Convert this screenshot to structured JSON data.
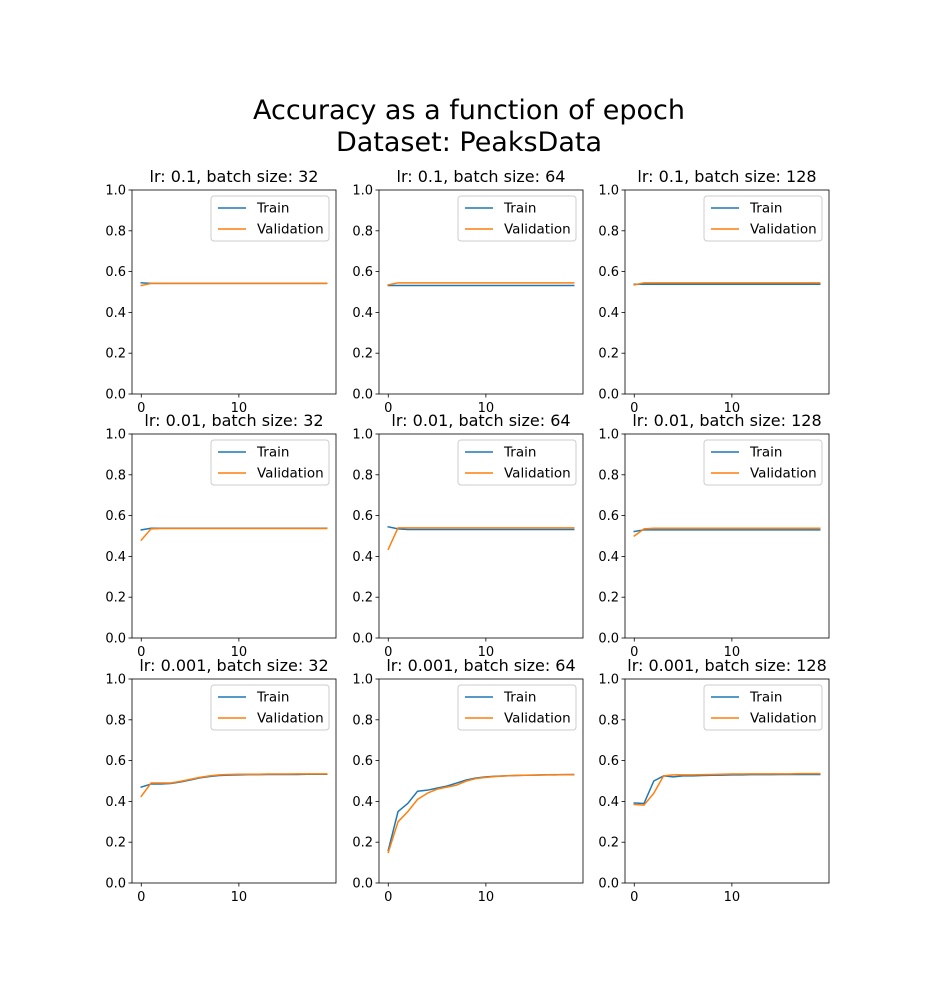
{
  "figure": {
    "title_line1": "Accuracy as a function of epoch",
    "title_line2": "Dataset: PeaksData"
  },
  "colors": {
    "train": "#1f77b4",
    "validation": "#ff7f0e"
  },
  "chart_data": [
    {
      "type": "line",
      "title": "lr: 0.1, batch size: 32",
      "xlabel": "",
      "ylabel": "",
      "xlim": [
        -0.95,
        19.95
      ],
      "ylim": [
        0,
        1
      ],
      "xticks": [
        0,
        10
      ],
      "yticks": [
        0.0,
        0.2,
        0.4,
        0.6,
        0.8,
        1.0
      ],
      "legend": "upper right",
      "grid": false,
      "x": [
        0,
        1,
        2,
        3,
        4,
        5,
        6,
        7,
        8,
        9,
        10,
        11,
        12,
        13,
        14,
        15,
        16,
        17,
        18,
        19
      ],
      "series": [
        {
          "name": "Train",
          "values": [
            0.545,
            0.542,
            0.542,
            0.542,
            0.542,
            0.542,
            0.542,
            0.542,
            0.542,
            0.542,
            0.542,
            0.542,
            0.542,
            0.542,
            0.542,
            0.542,
            0.542,
            0.542,
            0.542,
            0.542
          ]
        },
        {
          "name": "Validation",
          "values": [
            0.532,
            0.542,
            0.542,
            0.542,
            0.542,
            0.542,
            0.542,
            0.542,
            0.542,
            0.542,
            0.542,
            0.542,
            0.542,
            0.542,
            0.542,
            0.542,
            0.542,
            0.542,
            0.542,
            0.542
          ]
        }
      ]
    },
    {
      "type": "line",
      "title": "lr: 0.1, batch size: 64",
      "xlabel": "",
      "ylabel": "",
      "xlim": [
        -0.95,
        19.95
      ],
      "ylim": [
        0,
        1
      ],
      "xticks": [
        0,
        10
      ],
      "yticks": [
        0.0,
        0.2,
        0.4,
        0.6,
        0.8,
        1.0
      ],
      "legend": "upper right",
      "grid": false,
      "x": [
        0,
        1,
        2,
        3,
        4,
        5,
        6,
        7,
        8,
        9,
        10,
        11,
        12,
        13,
        14,
        15,
        16,
        17,
        18,
        19
      ],
      "series": [
        {
          "name": "Train",
          "values": [
            0.532,
            0.532,
            0.532,
            0.532,
            0.532,
            0.532,
            0.532,
            0.532,
            0.532,
            0.532,
            0.532,
            0.532,
            0.532,
            0.532,
            0.532,
            0.532,
            0.532,
            0.532,
            0.532,
            0.532
          ]
        },
        {
          "name": "Validation",
          "values": [
            0.535,
            0.545,
            0.545,
            0.545,
            0.545,
            0.545,
            0.545,
            0.545,
            0.545,
            0.545,
            0.545,
            0.545,
            0.545,
            0.545,
            0.545,
            0.545,
            0.545,
            0.545,
            0.545,
            0.545
          ]
        }
      ]
    },
    {
      "type": "line",
      "title": "lr: 0.1, batch size: 128",
      "xlabel": "",
      "ylabel": "",
      "xlim": [
        -0.95,
        19.95
      ],
      "ylim": [
        0,
        1
      ],
      "xticks": [
        0,
        10
      ],
      "yticks": [
        0.0,
        0.2,
        0.4,
        0.6,
        0.8,
        1.0
      ],
      "legend": "upper right",
      "grid": false,
      "x": [
        0,
        1,
        2,
        3,
        4,
        5,
        6,
        7,
        8,
        9,
        10,
        11,
        12,
        13,
        14,
        15,
        16,
        17,
        18,
        19
      ],
      "series": [
        {
          "name": "Train",
          "values": [
            0.538,
            0.538,
            0.538,
            0.538,
            0.538,
            0.538,
            0.538,
            0.538,
            0.538,
            0.538,
            0.538,
            0.538,
            0.538,
            0.538,
            0.538,
            0.538,
            0.538,
            0.538,
            0.538,
            0.538
          ]
        },
        {
          "name": "Validation",
          "values": [
            0.535,
            0.545,
            0.545,
            0.545,
            0.545,
            0.545,
            0.545,
            0.545,
            0.545,
            0.545,
            0.545,
            0.545,
            0.545,
            0.545,
            0.545,
            0.545,
            0.545,
            0.545,
            0.545,
            0.545
          ]
        }
      ]
    },
    {
      "type": "line",
      "title": "lr: 0.01, batch size: 32",
      "xlabel": "",
      "ylabel": "",
      "xlim": [
        -0.95,
        19.95
      ],
      "ylim": [
        0,
        1
      ],
      "xticks": [
        0,
        10
      ],
      "yticks": [
        0.0,
        0.2,
        0.4,
        0.6,
        0.8,
        1.0
      ],
      "legend": "upper right",
      "grid": false,
      "x": [
        0,
        1,
        2,
        3,
        4,
        5,
        6,
        7,
        8,
        9,
        10,
        11,
        12,
        13,
        14,
        15,
        16,
        17,
        18,
        19
      ],
      "series": [
        {
          "name": "Train",
          "values": [
            0.53,
            0.538,
            0.538,
            0.538,
            0.538,
            0.538,
            0.538,
            0.538,
            0.538,
            0.538,
            0.538,
            0.538,
            0.538,
            0.538,
            0.538,
            0.538,
            0.538,
            0.538,
            0.538,
            0.538
          ]
        },
        {
          "name": "Validation",
          "values": [
            0.48,
            0.535,
            0.537,
            0.537,
            0.537,
            0.537,
            0.537,
            0.537,
            0.537,
            0.537,
            0.537,
            0.537,
            0.537,
            0.537,
            0.537,
            0.537,
            0.537,
            0.537,
            0.537,
            0.537
          ]
        }
      ]
    },
    {
      "type": "line",
      "title": "lr: 0.01, batch size: 64",
      "xlabel": "",
      "ylabel": "",
      "xlim": [
        -0.95,
        19.95
      ],
      "ylim": [
        0,
        1
      ],
      "xticks": [
        0,
        10
      ],
      "yticks": [
        0.0,
        0.2,
        0.4,
        0.6,
        0.8,
        1.0
      ],
      "legend": "upper right",
      "grid": false,
      "x": [
        0,
        1,
        2,
        3,
        4,
        5,
        6,
        7,
        8,
        9,
        10,
        11,
        12,
        13,
        14,
        15,
        16,
        17,
        18,
        19
      ],
      "series": [
        {
          "name": "Train",
          "values": [
            0.545,
            0.535,
            0.532,
            0.532,
            0.532,
            0.532,
            0.532,
            0.532,
            0.532,
            0.532,
            0.532,
            0.532,
            0.532,
            0.532,
            0.532,
            0.532,
            0.532,
            0.532,
            0.532,
            0.532
          ]
        },
        {
          "name": "Validation",
          "values": [
            0.435,
            0.54,
            0.54,
            0.54,
            0.54,
            0.54,
            0.54,
            0.54,
            0.54,
            0.54,
            0.54,
            0.54,
            0.54,
            0.54,
            0.54,
            0.54,
            0.54,
            0.54,
            0.54,
            0.54
          ]
        }
      ]
    },
    {
      "type": "line",
      "title": "lr: 0.01, batch size: 128",
      "xlabel": "",
      "ylabel": "",
      "xlim": [
        -0.95,
        19.95
      ],
      "ylim": [
        0,
        1
      ],
      "xticks": [
        0,
        10
      ],
      "yticks": [
        0.0,
        0.2,
        0.4,
        0.6,
        0.8,
        1.0
      ],
      "legend": "upper right",
      "grid": false,
      "x": [
        0,
        1,
        2,
        3,
        4,
        5,
        6,
        7,
        8,
        9,
        10,
        11,
        12,
        13,
        14,
        15,
        16,
        17,
        18,
        19
      ],
      "series": [
        {
          "name": "Train",
          "values": [
            0.522,
            0.53,
            0.53,
            0.53,
            0.53,
            0.53,
            0.53,
            0.53,
            0.53,
            0.53,
            0.53,
            0.53,
            0.53,
            0.53,
            0.53,
            0.53,
            0.53,
            0.53,
            0.53,
            0.53
          ]
        },
        {
          "name": "Validation",
          "values": [
            0.5,
            0.535,
            0.538,
            0.538,
            0.538,
            0.538,
            0.538,
            0.538,
            0.538,
            0.538,
            0.538,
            0.538,
            0.538,
            0.538,
            0.538,
            0.538,
            0.538,
            0.538,
            0.538,
            0.538
          ]
        }
      ]
    },
    {
      "type": "line",
      "title": "lr: 0.001, batch size: 32",
      "xlabel": "",
      "ylabel": "",
      "xlim": [
        -0.95,
        19.95
      ],
      "ylim": [
        0,
        1
      ],
      "xticks": [
        0,
        10
      ],
      "yticks": [
        0.0,
        0.2,
        0.4,
        0.6,
        0.8,
        1.0
      ],
      "legend": "upper right",
      "grid": false,
      "x": [
        0,
        1,
        2,
        3,
        4,
        5,
        6,
        7,
        8,
        9,
        10,
        11,
        12,
        13,
        14,
        15,
        16,
        17,
        18,
        19
      ],
      "series": [
        {
          "name": "Train",
          "values": [
            0.47,
            0.485,
            0.485,
            0.488,
            0.495,
            0.505,
            0.515,
            0.522,
            0.527,
            0.529,
            0.53,
            0.531,
            0.531,
            0.532,
            0.532,
            0.532,
            0.532,
            0.533,
            0.533,
            0.533
          ]
        },
        {
          "name": "Validation",
          "values": [
            0.425,
            0.49,
            0.49,
            0.49,
            0.498,
            0.508,
            0.518,
            0.525,
            0.53,
            0.532,
            0.533,
            0.533,
            0.533,
            0.534,
            0.534,
            0.534,
            0.535,
            0.535,
            0.535,
            0.535
          ]
        }
      ]
    },
    {
      "type": "line",
      "title": "lr: 0.001, batch size: 64",
      "xlabel": "",
      "ylabel": "",
      "xlim": [
        -0.95,
        19.95
      ],
      "ylim": [
        0,
        1
      ],
      "xticks": [
        0,
        10
      ],
      "yticks": [
        0.0,
        0.2,
        0.4,
        0.6,
        0.8,
        1.0
      ],
      "legend": "upper right",
      "grid": false,
      "x": [
        0,
        1,
        2,
        3,
        4,
        5,
        6,
        7,
        8,
        9,
        10,
        11,
        12,
        13,
        14,
        15,
        16,
        17,
        18,
        19
      ],
      "series": [
        {
          "name": "Train",
          "values": [
            0.16,
            0.35,
            0.39,
            0.45,
            0.455,
            0.465,
            0.475,
            0.49,
            0.505,
            0.515,
            0.52,
            0.523,
            0.525,
            0.527,
            0.528,
            0.529,
            0.53,
            0.53,
            0.531,
            0.531
          ]
        },
        {
          "name": "Validation",
          "values": [
            0.15,
            0.3,
            0.35,
            0.41,
            0.44,
            0.46,
            0.47,
            0.48,
            0.5,
            0.512,
            0.518,
            0.522,
            0.525,
            0.527,
            0.528,
            0.529,
            0.53,
            0.531,
            0.531,
            0.532
          ]
        }
      ]
    },
    {
      "type": "line",
      "title": "lr: 0.001, batch size: 128",
      "xlabel": "",
      "ylabel": "",
      "xlim": [
        -0.95,
        19.95
      ],
      "ylim": [
        0,
        1
      ],
      "xticks": [
        0,
        10
      ],
      "yticks": [
        0.0,
        0.2,
        0.4,
        0.6,
        0.8,
        1.0
      ],
      "legend": "upper right",
      "grid": false,
      "x": [
        0,
        1,
        2,
        3,
        4,
        5,
        6,
        7,
        8,
        9,
        10,
        11,
        12,
        13,
        14,
        15,
        16,
        17,
        18,
        19
      ],
      "series": [
        {
          "name": "Train",
          "values": [
            0.392,
            0.39,
            0.5,
            0.525,
            0.52,
            0.525,
            0.525,
            0.527,
            0.528,
            0.529,
            0.53,
            0.53,
            0.531,
            0.531,
            0.531,
            0.532,
            0.532,
            0.532,
            0.532,
            0.532
          ]
        },
        {
          "name": "Validation",
          "values": [
            0.385,
            0.382,
            0.44,
            0.525,
            0.53,
            0.53,
            0.53,
            0.531,
            0.532,
            0.533,
            0.534,
            0.534,
            0.535,
            0.535,
            0.535,
            0.535,
            0.535,
            0.536,
            0.536,
            0.536
          ]
        }
      ]
    }
  ]
}
